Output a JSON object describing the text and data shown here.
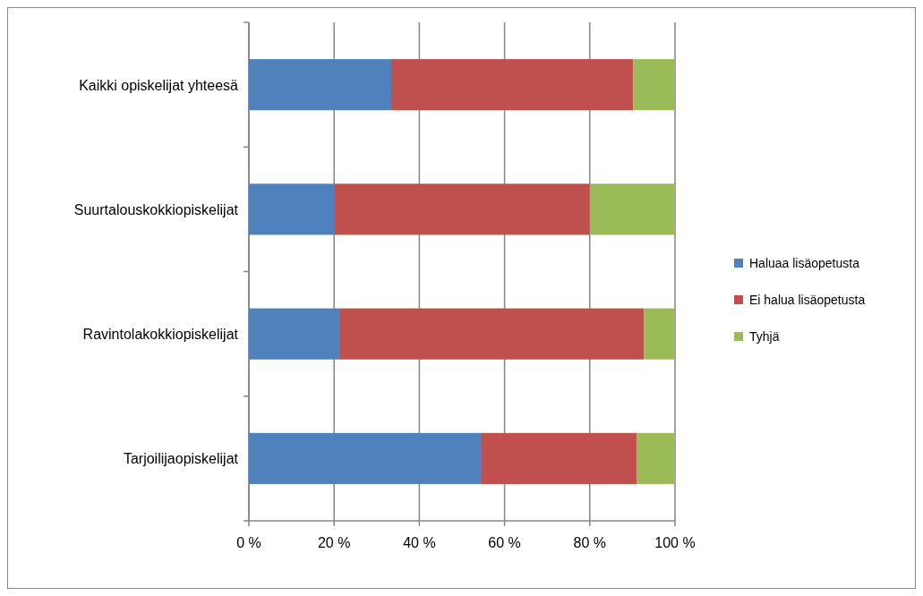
{
  "chart_data": {
    "type": "bar",
    "orientation": "horizontal",
    "stacked": true,
    "categories": [
      "Kaikki opiskelijat yhteesä",
      "Suurtalouskokkiopiskelijat",
      "Ravintolakokkiopiskelijat",
      "Tarjoilijaopiskelijat"
    ],
    "series": [
      {
        "name": "Haluaa lisäopetusta",
        "color": "#4f81bd",
        "values": [
          33.4,
          20,
          21.2,
          54.4
        ]
      },
      {
        "name": "Ei halua lisäopetusta",
        "color": "#c0504d",
        "values": [
          56.8,
          60,
          71.5,
          36.6
        ]
      },
      {
        "name": "Tyhjä",
        "color": "#9bbb59",
        "values": [
          9.8,
          20,
          7.3,
          9.0
        ]
      }
    ],
    "xlim": [
      0,
      100
    ],
    "xticks": [
      {
        "value": 0,
        "label": "0 %"
      },
      {
        "value": 20,
        "label": "20 %"
      },
      {
        "value": 40,
        "label": "40 %"
      },
      {
        "value": 60,
        "label": "60 %"
      },
      {
        "value": 80,
        "label": "80 %"
      },
      {
        "value": 100,
        "label": "100 %"
      }
    ],
    "grid": "x",
    "legend": "right"
  }
}
